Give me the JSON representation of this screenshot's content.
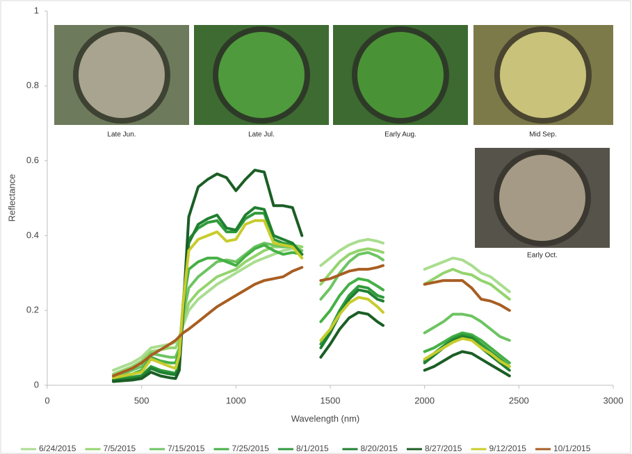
{
  "chart_data": {
    "type": "line",
    "x_label": "Wavelength (nm)",
    "y_label": "Reflectance",
    "xlim": [
      0,
      3000
    ],
    "ylim": [
      0,
      1
    ],
    "xticks": [
      0,
      500,
      1000,
      1500,
      2000,
      2500,
      3000
    ],
    "yticks": [
      0,
      0.2,
      0.4,
      0.6,
      0.8,
      1
    ],
    "grid": false,
    "legend": "bottom",
    "annotations": [
      "Late Jun.",
      "Late Jul.",
      "Early Aug.",
      "Mid Sep.",
      "Early Oct."
    ],
    "x": [
      350,
      400,
      450,
      500,
      550,
      600,
      650,
      680,
      700,
      720,
      750,
      800,
      850,
      900,
      950,
      1000,
      1050,
      1100,
      1150,
      1200,
      1250,
      1300,
      1350,
      1400,
      1450,
      1500,
      1550,
      1600,
      1650,
      1700,
      1750,
      1780,
      1900,
      2000,
      2050,
      2100,
      2150,
      2200,
      2250,
      2300,
      2350,
      2400,
      2450
    ],
    "series": [
      {
        "name": "6/24/2015",
        "color": "#aadd90",
        "values": [
          0.04,
          0.05,
          0.06,
          0.075,
          0.1,
          0.105,
          0.11,
          0.115,
          0.13,
          0.16,
          0.2,
          0.23,
          0.25,
          0.27,
          0.285,
          0.3,
          0.315,
          0.33,
          0.34,
          0.35,
          0.36,
          0.365,
          0.37,
          null,
          0.32,
          0.34,
          0.36,
          0.375,
          0.385,
          0.39,
          0.385,
          0.38,
          null,
          0.31,
          0.32,
          0.33,
          0.34,
          0.335,
          0.32,
          0.3,
          0.29,
          0.27,
          0.25
        ]
      },
      {
        "name": "7/5/2015",
        "color": "#94d46e",
        "values": [
          0.03,
          0.04,
          0.05,
          0.065,
          0.09,
          0.095,
          0.1,
          0.1,
          0.12,
          0.17,
          0.22,
          0.25,
          0.27,
          0.29,
          0.3,
          0.31,
          0.33,
          0.345,
          0.36,
          0.37,
          0.37,
          0.375,
          0.37,
          null,
          0.27,
          0.3,
          0.33,
          0.35,
          0.36,
          0.365,
          0.36,
          0.355,
          null,
          0.27,
          0.285,
          0.3,
          0.31,
          0.3,
          0.295,
          0.28,
          0.27,
          0.25,
          0.23
        ]
      },
      {
        "name": "7/15/2015",
        "color": "#6dc462",
        "values": [
          0.025,
          0.03,
          0.04,
          0.05,
          0.085,
          0.08,
          0.075,
          0.075,
          0.1,
          0.19,
          0.26,
          0.29,
          0.31,
          0.33,
          0.335,
          0.33,
          0.35,
          0.37,
          0.38,
          0.375,
          0.37,
          0.37,
          0.36,
          null,
          0.23,
          0.26,
          0.3,
          0.33,
          0.35,
          0.355,
          0.345,
          0.335,
          null,
          0.14,
          0.155,
          0.17,
          0.19,
          0.19,
          0.185,
          0.17,
          0.15,
          0.13,
          0.12
        ]
      },
      {
        "name": "7/25/2015",
        "color": "#45b045",
        "values": [
          0.02,
          0.025,
          0.03,
          0.04,
          0.075,
          0.065,
          0.06,
          0.06,
          0.09,
          0.22,
          0.31,
          0.33,
          0.34,
          0.34,
          0.33,
          0.32,
          0.345,
          0.365,
          0.375,
          0.36,
          0.35,
          0.355,
          0.35,
          null,
          0.17,
          0.2,
          0.24,
          0.27,
          0.285,
          0.28,
          0.265,
          0.255,
          null,
          0.09,
          0.1,
          0.115,
          0.13,
          0.14,
          0.135,
          0.12,
          0.1,
          0.08,
          0.06
        ]
      },
      {
        "name": "8/1/2015",
        "color": "#2f9b3c",
        "values": [
          0.015,
          0.02,
          0.022,
          0.026,
          0.05,
          0.04,
          0.035,
          0.032,
          0.06,
          0.22,
          0.39,
          0.42,
          0.435,
          0.44,
          0.41,
          0.41,
          0.445,
          0.46,
          0.46,
          0.39,
          0.38,
          0.375,
          0.35,
          null,
          0.11,
          0.15,
          0.2,
          0.24,
          0.265,
          0.26,
          0.24,
          0.235,
          null,
          0.065,
          0.085,
          0.105,
          0.125,
          0.135,
          0.13,
          0.11,
          0.09,
          0.07,
          0.05
        ]
      },
      {
        "name": "8/20/2015",
        "color": "#1f8030",
        "values": [
          0.012,
          0.015,
          0.018,
          0.022,
          0.045,
          0.035,
          0.03,
          0.028,
          0.05,
          0.2,
          0.38,
          0.43,
          0.445,
          0.455,
          0.42,
          0.415,
          0.455,
          0.475,
          0.47,
          0.4,
          0.39,
          0.38,
          0.35,
          null,
          0.1,
          0.14,
          0.19,
          0.23,
          0.255,
          0.25,
          0.23,
          0.225,
          null,
          0.06,
          0.08,
          0.1,
          0.12,
          0.13,
          0.125,
          0.1,
          0.08,
          0.06,
          0.04
        ]
      },
      {
        "name": "8/27/2015",
        "color": "#1b5e25",
        "values": [
          0.01,
          0.012,
          0.014,
          0.018,
          0.035,
          0.025,
          0.02,
          0.018,
          0.04,
          0.2,
          0.45,
          0.53,
          0.55,
          0.565,
          0.555,
          0.52,
          0.55,
          0.575,
          0.57,
          0.48,
          0.48,
          0.475,
          0.4,
          null,
          0.075,
          0.11,
          0.15,
          0.18,
          0.195,
          0.19,
          0.17,
          0.16,
          null,
          0.04,
          0.05,
          0.065,
          0.08,
          0.09,
          0.085,
          0.07,
          0.055,
          0.04,
          0.025
        ]
      },
      {
        "name": "9/12/2015",
        "color": "#c8cc2c",
        "values": [
          0.02,
          0.025,
          0.03,
          0.035,
          0.07,
          0.06,
          0.05,
          0.045,
          0.08,
          0.22,
          0.36,
          0.39,
          0.4,
          0.41,
          0.385,
          0.39,
          0.43,
          0.44,
          0.44,
          0.38,
          0.375,
          0.37,
          0.34,
          null,
          0.12,
          0.15,
          0.19,
          0.22,
          0.235,
          0.23,
          0.21,
          0.195,
          null,
          0.07,
          0.085,
          0.1,
          0.115,
          0.125,
          0.12,
          0.1,
          0.085,
          0.065,
          0.05
        ]
      },
      {
        "name": "10/1/2015",
        "color": "#a85e22",
        "values": [
          0.025,
          0.035,
          0.045,
          0.06,
          0.08,
          0.095,
          0.11,
          0.12,
          0.13,
          0.14,
          0.15,
          0.17,
          0.19,
          0.21,
          0.225,
          0.24,
          0.255,
          0.27,
          0.28,
          0.285,
          0.29,
          0.305,
          0.315,
          null,
          0.28,
          0.285,
          0.295,
          0.305,
          0.31,
          0.31,
          0.315,
          0.32,
          null,
          0.27,
          0.275,
          0.28,
          0.28,
          0.28,
          0.26,
          0.23,
          0.225,
          0.215,
          0.2
        ]
      }
    ]
  }
}
